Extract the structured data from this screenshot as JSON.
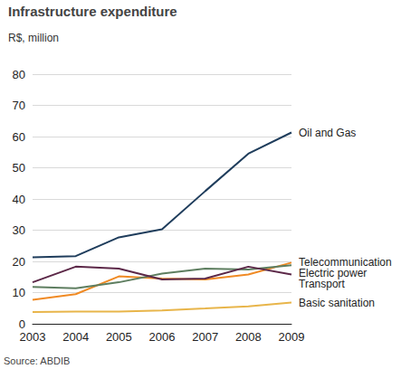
{
  "chart_data": {
    "type": "line",
    "title": "Infrastructure expenditure",
    "subtitle": "R$, million",
    "source": "Source: ABDIB",
    "categories": [
      "2003",
      "2004",
      "2005",
      "2006",
      "2007",
      "2008",
      "2009"
    ],
    "series": [
      {
        "name": "Oil and Gas",
        "color": "#1f3d5c",
        "values": [
          21.3,
          21.7,
          27.7,
          30.3,
          42.5,
          54.5,
          61.3
        ]
      },
      {
        "name": "Telecommunication",
        "color": "#f08a24",
        "values": [
          7.7,
          9.5,
          15.2,
          14.5,
          14.2,
          15.8,
          19.6
        ]
      },
      {
        "name": "Electric power",
        "color": "#5e7e60",
        "values": [
          11.8,
          11.4,
          13.3,
          16.1,
          17.7,
          17.4,
          18.8
        ]
      },
      {
        "name": "Transport",
        "color": "#5c2848",
        "values": [
          13.3,
          18.3,
          17.7,
          14.2,
          14.5,
          18.3,
          15.8
        ]
      },
      {
        "name": "Basic sanitation",
        "color": "#e8b54a",
        "values": [
          3.8,
          3.9,
          3.9,
          4.3,
          4.9,
          5.6,
          6.8
        ]
      }
    ],
    "ylim": [
      0,
      80
    ],
    "yticks": [
      0,
      10,
      20,
      30,
      40,
      50,
      60,
      70,
      80
    ],
    "grid": true
  }
}
